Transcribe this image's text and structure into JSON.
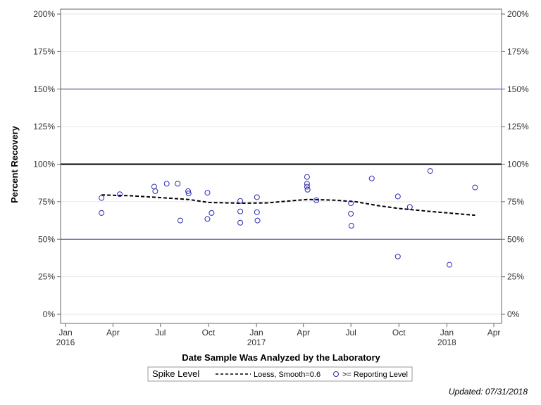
{
  "chart_data": {
    "type": "scatter",
    "xlabel": "Date Sample Was Analyzed by the Laboratory",
    "ylabel": "Percent Recovery",
    "ylim": [
      0,
      200
    ],
    "xlim": [
      "2016-01-01",
      "2018-04-05"
    ],
    "grid": true,
    "y_ticks": [
      "0%",
      "25%",
      "50%",
      "75%",
      "100%",
      "125%",
      "150%",
      "175%",
      "200%"
    ],
    "y_tick_values": [
      0,
      25,
      50,
      75,
      100,
      125,
      150,
      175,
      200
    ],
    "x_ticks": [
      {
        "date": "2016-01-01",
        "label": "Jan",
        "sublabel": "2016"
      },
      {
        "date": "2016-04-01",
        "label": "Apr",
        "sublabel": ""
      },
      {
        "date": "2016-07-01",
        "label": "Jul",
        "sublabel": ""
      },
      {
        "date": "2016-10-01",
        "label": "Oct",
        "sublabel": ""
      },
      {
        "date": "2017-01-01",
        "label": "Jan",
        "sublabel": "2017"
      },
      {
        "date": "2017-04-01",
        "label": "Apr",
        "sublabel": ""
      },
      {
        "date": "2017-07-01",
        "label": "Jul",
        "sublabel": ""
      },
      {
        "date": "2017-10-01",
        "label": "Oct",
        "sublabel": ""
      },
      {
        "date": "2018-01-01",
        "label": "Jan",
        "sublabel": "2018"
      },
      {
        "date": "2018-04-01",
        "label": "Apr",
        "sublabel": ""
      }
    ],
    "reference_lines": [
      {
        "value": 100,
        "style": "bold-black"
      },
      {
        "value": 150,
        "style": "thin-blue"
      },
      {
        "value": 50,
        "style": "thin-blue"
      }
    ],
    "series": [
      {
        "name": ">= Reporting Level",
        "marker": "open-circle",
        "color": "#2b2bb0",
        "points": [
          {
            "x": "2016-03-10",
            "y": 77.5
          },
          {
            "x": "2016-03-10",
            "y": 67.5
          },
          {
            "x": "2016-04-14",
            "y": 80.0
          },
          {
            "x": "2016-06-19",
            "y": 85.0
          },
          {
            "x": "2016-06-21",
            "y": 82.0
          },
          {
            "x": "2016-07-13",
            "y": 87.0
          },
          {
            "x": "2016-08-03",
            "y": 87.0
          },
          {
            "x": "2016-08-08",
            "y": 62.5
          },
          {
            "x": "2016-08-23",
            "y": 82.0
          },
          {
            "x": "2016-08-24",
            "y": 80.5
          },
          {
            "x": "2016-09-29",
            "y": 81.0
          },
          {
            "x": "2016-09-29",
            "y": 63.5
          },
          {
            "x": "2016-10-07",
            "y": 67.5
          },
          {
            "x": "2016-12-01",
            "y": 75.5
          },
          {
            "x": "2016-12-01",
            "y": 68.5
          },
          {
            "x": "2016-12-01",
            "y": 61.0
          },
          {
            "x": "2017-01-02",
            "y": 78.0
          },
          {
            "x": "2017-01-02",
            "y": 68.0
          },
          {
            "x": "2017-01-03",
            "y": 62.5
          },
          {
            "x": "2017-04-08",
            "y": 91.5
          },
          {
            "x": "2017-04-08",
            "y": 87.0
          },
          {
            "x": "2017-04-08",
            "y": 85.0
          },
          {
            "x": "2017-04-09",
            "y": 83.0
          },
          {
            "x": "2017-04-26",
            "y": 76.0
          },
          {
            "x": "2017-07-01",
            "y": 74.0
          },
          {
            "x": "2017-07-01",
            "y": 67.0
          },
          {
            "x": "2017-07-02",
            "y": 59.0
          },
          {
            "x": "2017-08-10",
            "y": 90.5
          },
          {
            "x": "2017-09-29",
            "y": 78.5
          },
          {
            "x": "2017-09-29",
            "y": 38.5
          },
          {
            "x": "2017-10-22",
            "y": 71.5
          },
          {
            "x": "2017-11-30",
            "y": 95.5
          },
          {
            "x": "2018-01-06",
            "y": 33.0
          },
          {
            "x": "2018-02-24",
            "y": 84.5
          }
        ]
      },
      {
        "name": "Loess, Smooth=0.6",
        "line": "dashed",
        "color": "#000000",
        "points": [
          {
            "x": "2016-03-10",
            "y": 79.5
          },
          {
            "x": "2016-05-01",
            "y": 79.0
          },
          {
            "x": "2016-06-20",
            "y": 78.0
          },
          {
            "x": "2016-08-24",
            "y": 76.5
          },
          {
            "x": "2016-10-01",
            "y": 74.5
          },
          {
            "x": "2016-12-01",
            "y": 74.0
          },
          {
            "x": "2017-01-20",
            "y": 74.2
          },
          {
            "x": "2017-04-08",
            "y": 76.5
          },
          {
            "x": "2017-06-01",
            "y": 76.0
          },
          {
            "x": "2017-07-10",
            "y": 75.0
          },
          {
            "x": "2017-08-20",
            "y": 72.5
          },
          {
            "x": "2017-10-01",
            "y": 70.5
          },
          {
            "x": "2017-12-01",
            "y": 68.5
          },
          {
            "x": "2018-02-24",
            "y": 66.0
          }
        ]
      }
    ]
  },
  "legend": {
    "title": "Spike Level",
    "loess_label": "Loess, Smooth=0.6",
    "points_label": ">= Reporting Level"
  },
  "footnote": "Updated: 07/31/2018"
}
